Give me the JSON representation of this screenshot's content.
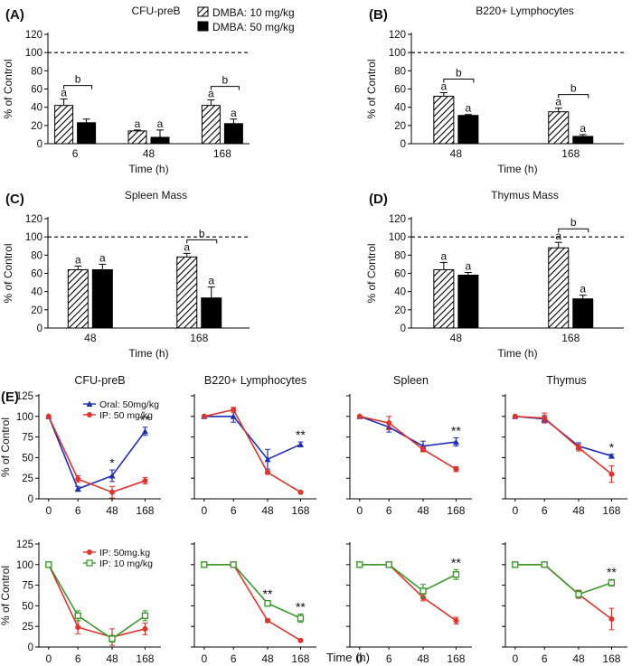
{
  "colors": {
    "bar_black": "#000000",
    "line_blue": "#1f2fb5",
    "line_red": "#e0332c",
    "line_green": "#3a9a2a",
    "axis": "#000000"
  },
  "chart_data": [
    {
      "panel": "(A)",
      "type": "bar",
      "title": "CFU-preB",
      "xlabel": "Time (h)",
      "ylabel": "% of Control",
      "ylim": [
        0,
        120
      ],
      "yticks": [
        "0",
        "20",
        "40",
        "60",
        "80",
        "100",
        "120"
      ],
      "control_line": 100,
      "categories": [
        "6",
        "48",
        "168"
      ],
      "legend": [
        {
          "label": "DMBA: 10 mg/kg",
          "pattern": "hatched"
        },
        {
          "label": "DMBA: 50 mg/kg",
          "pattern": "solid"
        }
      ],
      "series": [
        {
          "name": "DMBA: 10 mg/kg",
          "pattern": "hatched",
          "values": [
            42,
            14,
            42
          ],
          "errors": [
            7,
            1,
            6
          ],
          "labels": [
            "a",
            "a",
            "a"
          ]
        },
        {
          "name": "DMBA: 50 mg/kg",
          "pattern": "solid",
          "values": [
            23,
            7,
            22
          ],
          "errors": [
            4,
            8,
            5
          ],
          "labels": [
            "",
            "a",
            "a"
          ]
        }
      ],
      "brackets": [
        {
          "category": 0,
          "label": "b"
        },
        {
          "category": 2,
          "label": "b"
        }
      ]
    },
    {
      "panel": "(B)",
      "type": "bar",
      "title": "B220+ Lymphocytes",
      "xlabel": "Time (h)",
      "ylabel": "% of Control",
      "ylim": [
        0,
        120
      ],
      "yticks": [
        "0",
        "20",
        "40",
        "60",
        "80",
        "100",
        "120"
      ],
      "control_line": 100,
      "categories": [
        "48",
        "168"
      ],
      "series": [
        {
          "name": "DMBA: 10 mg/kg",
          "pattern": "hatched",
          "values": [
            52,
            35
          ],
          "errors": [
            4,
            4
          ],
          "labels": [
            "a",
            "a"
          ]
        },
        {
          "name": "DMBA: 50 mg/kg",
          "pattern": "solid",
          "values": [
            31,
            8
          ],
          "errors": [
            1,
            2
          ],
          "labels": [
            "a",
            "a"
          ]
        }
      ],
      "brackets": [
        {
          "category": 0,
          "label": "b"
        },
        {
          "category": 1,
          "label": "b"
        }
      ]
    },
    {
      "panel": "(C)",
      "type": "bar",
      "title": "Spleen Mass",
      "xlabel": "Time (h)",
      "ylabel": "% of Control",
      "ylim": [
        0,
        120
      ],
      "yticks": [
        "0",
        "20",
        "40",
        "60",
        "80",
        "100",
        "120"
      ],
      "control_line": 100,
      "categories": [
        "48",
        "168"
      ],
      "series": [
        {
          "name": "DMBA: 10 mg/kg",
          "pattern": "hatched",
          "values": [
            64,
            78
          ],
          "errors": [
            4,
            4
          ],
          "labels": [
            "a",
            "a"
          ]
        },
        {
          "name": "DMBA: 50 mg/kg",
          "pattern": "solid",
          "values": [
            64,
            33
          ],
          "errors": [
            6,
            12
          ],
          "labels": [
            "a",
            "a"
          ]
        }
      ],
      "brackets": [
        {
          "category": 1,
          "label": "b"
        }
      ]
    },
    {
      "panel": "(D)",
      "type": "bar",
      "title": "Thymus Mass",
      "xlabel": "Time (h)",
      "ylabel": "% of Control",
      "ylim": [
        0,
        120
      ],
      "yticks": [
        "0",
        "20",
        "40",
        "60",
        "80",
        "100",
        "120"
      ],
      "control_line": 100,
      "categories": [
        "48",
        "168"
      ],
      "series": [
        {
          "name": "DMBA: 10 mg/kg",
          "pattern": "hatched",
          "values": [
            64,
            88
          ],
          "errors": [
            8,
            6
          ],
          "labels": [
            "a",
            "a"
          ]
        },
        {
          "name": "DMBA: 50 mg/kg",
          "pattern": "solid",
          "values": [
            58,
            32
          ],
          "errors": [
            3,
            4
          ],
          "labels": [
            "a",
            "a"
          ]
        }
      ],
      "brackets": [
        {
          "category": 1,
          "label": "b"
        }
      ]
    },
    {
      "panel": "(E)",
      "type": "line",
      "title": "CFU-preB",
      "row": 1,
      "col": 0,
      "x": [
        "0",
        "6",
        "48",
        "168"
      ],
      "ylim": [
        0,
        125
      ],
      "yticks": [
        "0",
        "25",
        "50",
        "75",
        "100",
        "125"
      ],
      "ylabel": "% of Control",
      "legend": [
        "Oral: 50mg/kg",
        "IP: 50 mg/kg"
      ],
      "series": [
        {
          "name": "Oral: 50mg/kg",
          "color": "blue",
          "marker": "triangle",
          "values": [
            100,
            12,
            28,
            82
          ],
          "errors": [
            0,
            3,
            7,
            5
          ]
        },
        {
          "name": "IP: 50 mg/kg",
          "color": "red",
          "marker": "circle",
          "values": [
            100,
            24,
            8,
            22
          ],
          "errors": [
            0,
            4,
            7,
            4
          ]
        }
      ],
      "annotations": [
        {
          "index": 2,
          "text": "*"
        },
        {
          "index": 3,
          "text": "**"
        }
      ]
    },
    {
      "panel": "",
      "type": "line",
      "title": "B220+ Lymphocytes",
      "row": 1,
      "col": 1,
      "x": [
        "0",
        "6",
        "48",
        "168"
      ],
      "ylim": [
        0,
        125
      ],
      "series": [
        {
          "name": "Oral: 50mg/kg",
          "color": "blue",
          "marker": "triangle",
          "values": [
            100,
            100,
            48,
            66
          ],
          "errors": [
            0,
            7,
            12,
            3
          ]
        },
        {
          "name": "IP: 50 mg/kg",
          "color": "red",
          "marker": "circle",
          "values": [
            100,
            108,
            32,
            8
          ],
          "errors": [
            0,
            3,
            2,
            1
          ]
        }
      ],
      "annotations": [
        {
          "index": 3,
          "text": "**"
        }
      ]
    },
    {
      "panel": "",
      "type": "line",
      "title": "Spleen",
      "row": 1,
      "col": 2,
      "x": [
        "0",
        "6",
        "48",
        "168"
      ],
      "ylim": [
        0,
        125
      ],
      "series": [
        {
          "name": "Oral: 50mg/kg",
          "color": "blue",
          "marker": "triangle",
          "values": [
            100,
            87,
            64,
            69
          ],
          "errors": [
            0,
            6,
            6,
            5
          ]
        },
        {
          "name": "IP: 50 mg/kg",
          "color": "red",
          "marker": "circle",
          "values": [
            100,
            92,
            60,
            36
          ],
          "errors": [
            0,
            8,
            3,
            3
          ]
        }
      ],
      "annotations": [
        {
          "index": 3,
          "text": "**"
        }
      ]
    },
    {
      "panel": "",
      "type": "line",
      "title": "Thymus",
      "row": 1,
      "col": 3,
      "x": [
        "0",
        "6",
        "48",
        "168"
      ],
      "ylim": [
        0,
        125
      ],
      "series": [
        {
          "name": "Oral: 50mg/kg",
          "color": "blue",
          "marker": "triangle",
          "values": [
            100,
            97,
            64,
            52
          ],
          "errors": [
            0,
            4,
            4,
            2
          ]
        },
        {
          "name": "IP: 50 mg/kg",
          "color": "red",
          "marker": "circle",
          "values": [
            100,
            98,
            62,
            30
          ],
          "errors": [
            0,
            6,
            4,
            10
          ]
        }
      ],
      "annotations": [
        {
          "index": 3,
          "text": "*"
        }
      ]
    },
    {
      "panel": "",
      "type": "line",
      "title": "",
      "row": 2,
      "col": 0,
      "x": [
        "0",
        "6",
        "48",
        "168"
      ],
      "ylim": [
        0,
        125
      ],
      "yticks": [
        "0",
        "25",
        "50",
        "75",
        "100",
        "125"
      ],
      "ylabel": "% of Control",
      "legend": [
        "IP: 50mg.kg",
        "IP: 10 mg/kg"
      ],
      "series": [
        {
          "name": "IP: 50mg.kg",
          "color": "red",
          "marker": "circle",
          "values": [
            100,
            24,
            12,
            22
          ],
          "errors": [
            0,
            8,
            10,
            7
          ]
        },
        {
          "name": "IP: 10 mg/kg",
          "color": "green",
          "marker": "square",
          "values": [
            100,
            38,
            10,
            38
          ],
          "errors": [
            0,
            6,
            4,
            6
          ]
        }
      ],
      "annotations": []
    },
    {
      "panel": "",
      "type": "line",
      "title": "",
      "row": 2,
      "col": 1,
      "x": [
        "0",
        "6",
        "48",
        "168"
      ],
      "ylim": [
        0,
        125
      ],
      "series": [
        {
          "name": "IP: 50mg.kg",
          "color": "red",
          "marker": "circle",
          "values": [
            100,
            100,
            32,
            8
          ],
          "errors": [
            0,
            0,
            2,
            1
          ]
        },
        {
          "name": "IP: 10 mg/kg",
          "color": "green",
          "marker": "square",
          "values": [
            100,
            100,
            53,
            35
          ],
          "errors": [
            0,
            0,
            3,
            5
          ]
        }
      ],
      "annotations": [
        {
          "index": 2,
          "text": "**"
        },
        {
          "index": 3,
          "text": "**"
        }
      ]
    },
    {
      "panel": "",
      "type": "line",
      "title": "",
      "row": 2,
      "col": 2,
      "x": [
        "0",
        "6",
        "48",
        "168"
      ],
      "ylim": [
        0,
        125
      ],
      "series": [
        {
          "name": "IP: 50mg.kg",
          "color": "red",
          "marker": "circle",
          "values": [
            100,
            100,
            60,
            32
          ],
          "errors": [
            0,
            0,
            4,
            4
          ]
        },
        {
          "name": "IP: 10 mg/kg",
          "color": "green",
          "marker": "square",
          "values": [
            100,
            100,
            68,
            88
          ],
          "errors": [
            0,
            0,
            8,
            6
          ]
        }
      ],
      "annotations": [
        {
          "index": 3,
          "text": "**"
        }
      ]
    },
    {
      "panel": "",
      "type": "line",
      "title": "",
      "row": 2,
      "col": 3,
      "x": [
        "0",
        "6",
        "48",
        "168"
      ],
      "ylim": [
        0,
        125
      ],
      "series": [
        {
          "name": "IP: 50mg.kg",
          "color": "red",
          "marker": "circle",
          "values": [
            100,
            100,
            64,
            34
          ],
          "errors": [
            0,
            0,
            5,
            13
          ]
        },
        {
          "name": "IP: 10 mg/kg",
          "color": "green",
          "marker": "square",
          "values": [
            100,
            100,
            64,
            78
          ],
          "errors": [
            0,
            0,
            4,
            4
          ]
        }
      ],
      "annotations": [
        {
          "index": 3,
          "text": "**"
        }
      ]
    }
  ],
  "shared": {
    "e_xlabel": "Time (h)"
  }
}
